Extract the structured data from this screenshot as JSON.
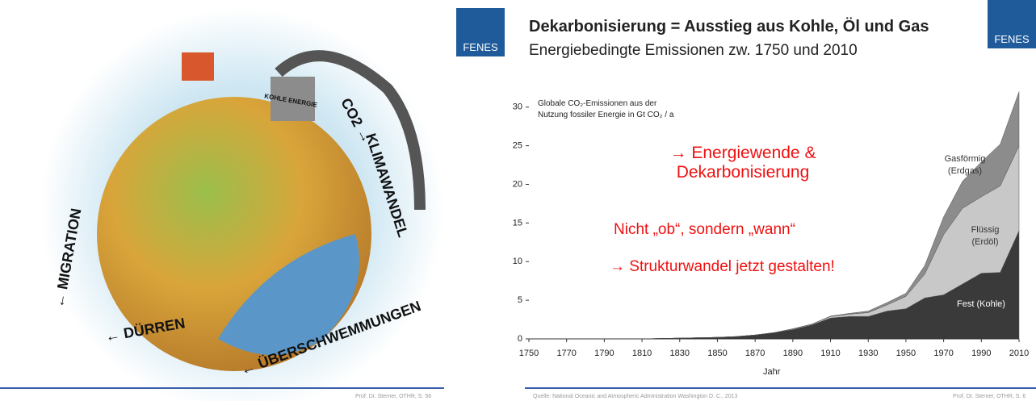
{
  "left_slide": {
    "cartoon_texts": [
      "CO2 →",
      "KLIMAWANDEL",
      "← ÜBERSCHWEMMUNGEN",
      "← DÜRREN",
      "← MIGRATION",
      "KOHLE ENERGIE"
    ],
    "footer": "Prof. Dr. Sterner, OTHR, S. 56",
    "logo": "FENES"
  },
  "right_slide": {
    "title": "Dekarbonisierung = Ausstieg aus Kohle, Öl und Gas",
    "subtitle": "Energiebedingte Emissionen zw. 1750 und 2010",
    "logo": "FENES",
    "source": "Quelle: National Oceanic and Atmospheric Administration Washington D. C., 2013",
    "footer": "Prof. Dr. Sterner, OTHR, S. 6"
  },
  "chart_data": {
    "type": "stacked_area",
    "y_label": "Globale CO₂-Emissionen aus der Nutzung fossiler Energie in Gt CO₂ / a",
    "x_label": "Jahr",
    "annotations": [
      "→ Energiewende & Dekarbonisierung",
      "Nicht „ob“, sondern „wann“",
      "→ Strukturwandel jetzt gestalten!"
    ],
    "x": [
      1750,
      1760,
      1770,
      1780,
      1790,
      1800,
      1810,
      1820,
      1830,
      1840,
      1850,
      1860,
      1870,
      1880,
      1890,
      1900,
      1910,
      1920,
      1930,
      1940,
      1950,
      1960,
      1970,
      1980,
      1990,
      2000,
      2010
    ],
    "series": [
      {
        "name": "Fest (Kohle)",
        "color": "#3a3a3a",
        "values": [
          0,
          0,
          0,
          0,
          0,
          0,
          0,
          0.05,
          0.1,
          0.15,
          0.2,
          0.3,
          0.5,
          0.8,
          1.2,
          1.8,
          2.7,
          2.9,
          2.9,
          3.6,
          3.9,
          5.3,
          5.7,
          7.1,
          8.5,
          8.6,
          14
        ]
      },
      {
        "name": "Flüssig (Erdöl)",
        "color": "#c8c8c8",
        "values": [
          0,
          0,
          0,
          0,
          0,
          0,
          0,
          0,
          0,
          0,
          0,
          0,
          0,
          0,
          0.1,
          0.1,
          0.2,
          0.3,
          0.5,
          0.8,
          1.6,
          3.1,
          7.8,
          9.8,
          9.9,
          11.2,
          11
        ]
      },
      {
        "name": "Gasförmig (Erdgas)",
        "color": "#8c8c8c",
        "values": [
          0,
          0,
          0,
          0,
          0,
          0,
          0,
          0,
          0,
          0,
          0,
          0,
          0,
          0,
          0,
          0,
          0.05,
          0.1,
          0.2,
          0.3,
          0.4,
          1.1,
          2.3,
          3.5,
          4.5,
          5.4,
          7
        ]
      }
    ],
    "xlim": [
      1750,
      2010
    ],
    "xticks": [
      1750,
      1770,
      1790,
      1810,
      1830,
      1850,
      1870,
      1890,
      1910,
      1930,
      1950,
      1970,
      1990,
      2010
    ],
    "ylim": [
      0,
      33
    ],
    "yticks": [
      0,
      5,
      10,
      15,
      20,
      25,
      30
    ]
  }
}
